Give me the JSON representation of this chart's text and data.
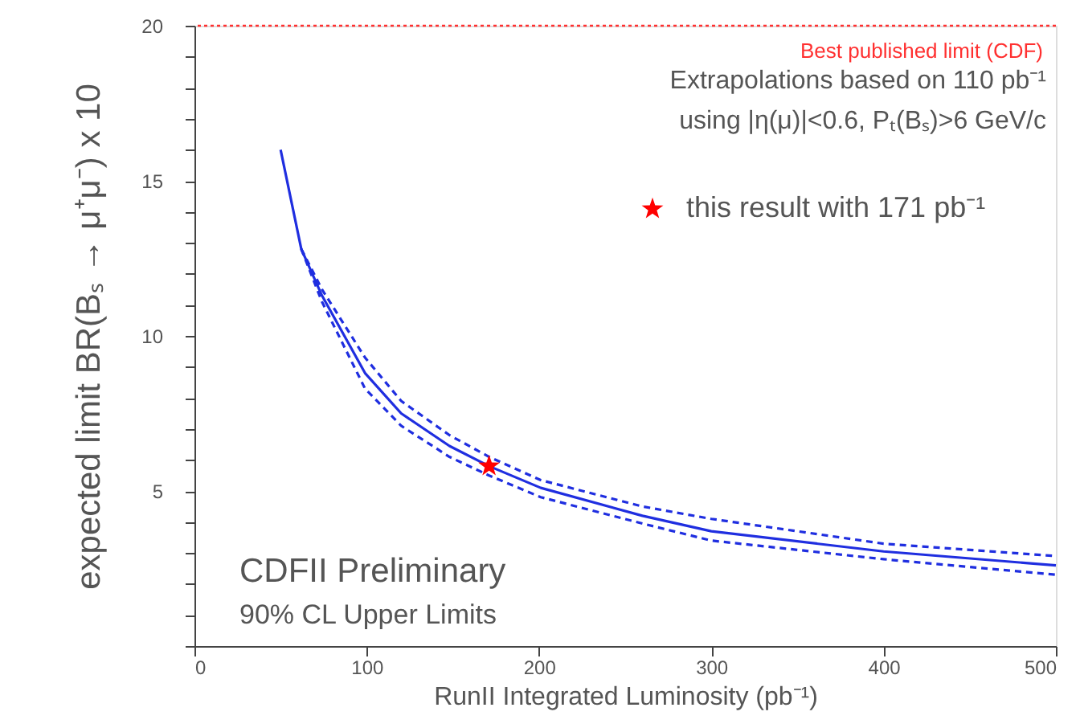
{
  "chart_data": {
    "type": "line",
    "xlabel": "RunII Integrated Luminosity (pb⁻¹)",
    "ylabel": "expected limit BR(Bₛ → μ⁺μ⁻) x 10",
    "xlim": [
      0,
      500
    ],
    "ylim": [
      0,
      20
    ],
    "xticks": [
      0,
      100,
      200,
      300,
      400,
      500
    ],
    "yticks": [
      {
        "value": 0,
        "label": null
      },
      {
        "value": 1,
        "label": null
      },
      {
        "value": 2,
        "label": null
      },
      {
        "value": 3,
        "label": null
      },
      {
        "value": 4,
        "label": null
      },
      5,
      {
        "value": 6,
        "label": null
      },
      {
        "value": 7,
        "label": null
      },
      {
        "value": 8,
        "label": null
      },
      {
        "value": 9,
        "label": null
      },
      10,
      {
        "value": 11,
        "label": null
      },
      {
        "value": 12,
        "label": null
      },
      {
        "value": 13,
        "label": null
      },
      {
        "value": 14,
        "label": null
      },
      15,
      {
        "value": 16,
        "label": null
      },
      {
        "value": 17,
        "label": null
      },
      {
        "value": 18,
        "label": null
      },
      {
        "value": 19,
        "label": null
      },
      20
    ],
    "grid": false,
    "legend": "top right",
    "series": [
      {
        "color": "#1f2ee0",
        "line_style": "solid",
        "x": [
          50,
          62,
          74,
          99,
          120,
          148,
          171,
          201,
          260,
          300,
          400,
          500
        ],
        "values": [
          16.0,
          12.8,
          11.3,
          8.8,
          7.5,
          6.45,
          5.8,
          5.1,
          4.2,
          3.7,
          3.05,
          2.6
        ]
      },
      {
        "color": "#1f2ee0",
        "line_style": "dashed",
        "x": [
          62,
          74,
          99,
          120,
          148,
          171,
          201,
          260,
          300,
          400,
          500
        ],
        "values": [
          12.8,
          11.5,
          9.3,
          7.9,
          6.8,
          6.1,
          5.35,
          4.5,
          4.1,
          3.3,
          2.9
        ]
      },
      {
        "color": "#1f2ee0",
        "line_style": "dashed",
        "x": [
          62,
          74,
          99,
          120,
          148,
          171,
          201,
          260,
          300,
          400,
          500
        ],
        "values": [
          12.8,
          11.1,
          8.3,
          7.1,
          6.1,
          5.5,
          4.8,
          3.95,
          3.4,
          2.8,
          2.3
        ]
      },
      {
        "type": "scatter",
        "name": "this result with 171 pb⁻¹",
        "color": "#ff0000",
        "marker": "star",
        "x": [
          171
        ],
        "values": [
          5.8
        ]
      }
    ],
    "ref_lines": [
      {
        "axis": "y",
        "value": 20,
        "label": "Best published limit (CDF)",
        "color": "#ff3030",
        "line_style": "dotted"
      }
    ],
    "annotations": [
      "Extrapolations based on 110 pb⁻¹",
      "using |η(μ)|<0.6, Pₜ(Bₛ)>6 GeV/c",
      "CDFII Preliminary",
      "90% CL Upper Limits"
    ]
  }
}
